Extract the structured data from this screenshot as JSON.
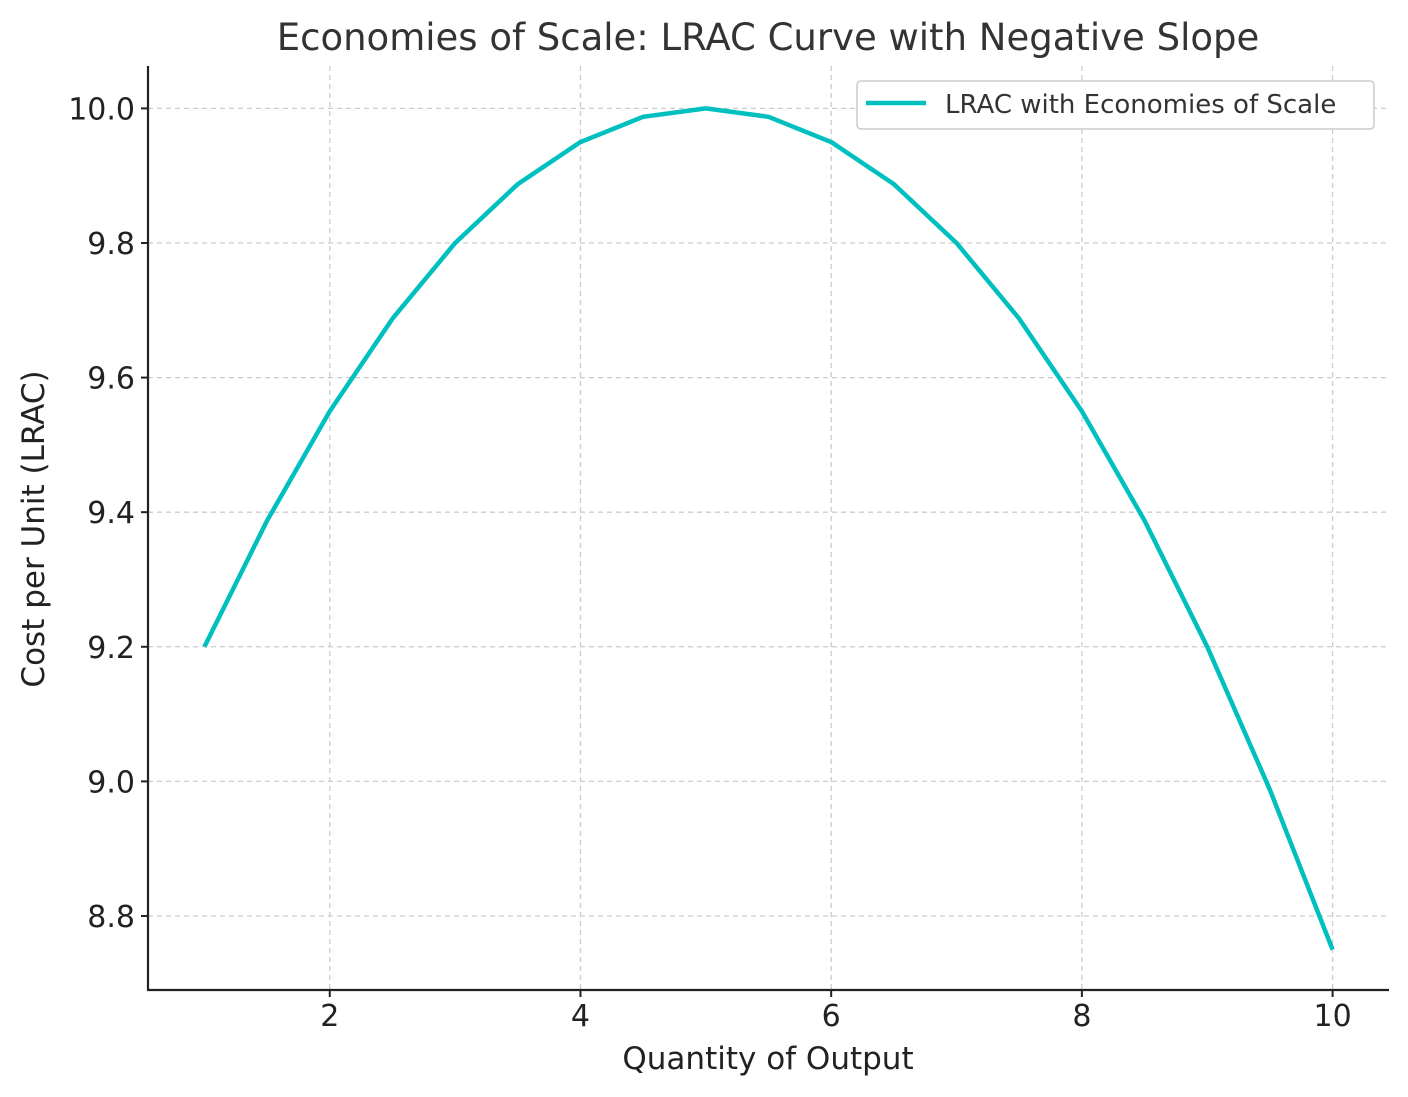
{
  "chart_data": {
    "type": "line",
    "title": "Economies of Scale: LRAC Curve with Negative Slope",
    "xlabel": "Quantity of Output",
    "ylabel": "Cost per Unit (LRAC)",
    "xlim": [
      0.55,
      10.45
    ],
    "ylim": [
      8.69,
      10.063
    ],
    "xticks": [
      2,
      4,
      6,
      8,
      10
    ],
    "xtick_labels": [
      "2",
      "4",
      "6",
      "8",
      "10"
    ],
    "yticks": [
      8.8,
      9.0,
      9.2,
      9.4,
      9.6,
      9.8,
      10.0
    ],
    "ytick_labels": [
      "8.8",
      "9.0",
      "9.2",
      "9.4",
      "9.6",
      "9.8",
      "10.0"
    ],
    "grid": true,
    "legend_position": "top-right",
    "series": [
      {
        "name": "LRAC with Economies of Scale",
        "color": "#00bfbf",
        "x": [
          1.0,
          1.5,
          2.0,
          2.5,
          3.0,
          3.5,
          4.0,
          4.5,
          5.0,
          5.5,
          6.0,
          6.5,
          7.0,
          7.5,
          8.0,
          8.5,
          9.0,
          9.5,
          10.0
        ],
        "y": [
          9.2,
          9.3875,
          9.55,
          9.6875,
          9.8,
          9.8875,
          9.95,
          9.9875,
          10.0,
          9.9875,
          9.95,
          9.8875,
          9.8,
          9.6875,
          9.55,
          9.3875,
          9.2,
          8.9875,
          8.75
        ]
      }
    ]
  }
}
